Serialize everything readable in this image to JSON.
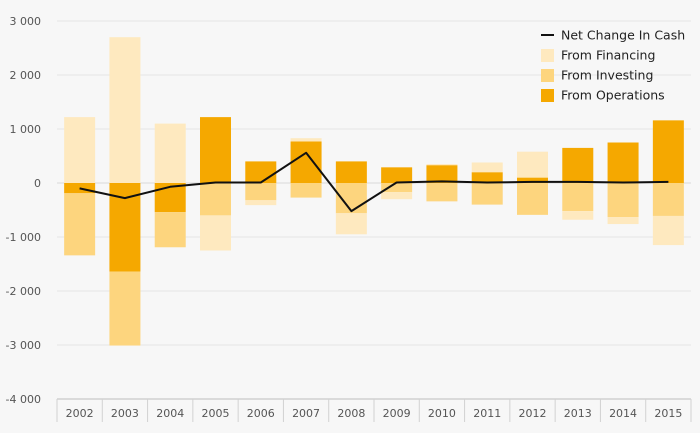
{
  "chart_data": {
    "type": "bar",
    "stacked": true,
    "title": "",
    "xlabel": "",
    "ylabel": "",
    "ylim": [
      -4000,
      3000
    ],
    "y_ticks": [
      3000,
      2000,
      1000,
      0,
      -1000,
      -2000,
      -3000,
      -4000
    ],
    "y_tick_labels": [
      "3 000",
      "2 000",
      "1 000",
      "0",
      "-1 000",
      "-2 000",
      "-3 000",
      "-4 000"
    ],
    "grid": true,
    "legend_position": "top-right",
    "categories": [
      "2002",
      "2003",
      "2004",
      "2005",
      "2006",
      "2007",
      "2008",
      "2009",
      "2010",
      "2011",
      "2012",
      "2013",
      "2014",
      "2015"
    ],
    "series": [
      {
        "name": "From Operations",
        "kind": "bar",
        "color": "#f5a800",
        "values": [
          -190,
          -1640,
          -540,
          1220,
          400,
          770,
          400,
          290,
          330,
          200,
          100,
          650,
          750,
          1160
        ]
      },
      {
        "name": "From Investing",
        "kind": "bar",
        "color": "#fdd57e",
        "values": [
          -1150,
          -1370,
          -650,
          -600,
          -320,
          -270,
          -560,
          -170,
          -340,
          -400,
          -590,
          -520,
          -630,
          -610
        ]
      },
      {
        "name": "From Financing",
        "kind": "bar",
        "color": "#fee9bf",
        "values": [
          1220,
          2700,
          1100,
          -650,
          -90,
          60,
          -390,
          -130,
          20,
          180,
          480,
          -160,
          -130,
          -540
        ]
      },
      {
        "name": "Net Change In Cash",
        "kind": "line",
        "color": "#111111",
        "values": [
          -100,
          -280,
          -70,
          10,
          10,
          560,
          -520,
          10,
          30,
          10,
          20,
          20,
          10,
          20
        ]
      }
    ],
    "legend_order": [
      "Net Change In Cash",
      "From Financing",
      "From Investing",
      "From Operations"
    ]
  }
}
